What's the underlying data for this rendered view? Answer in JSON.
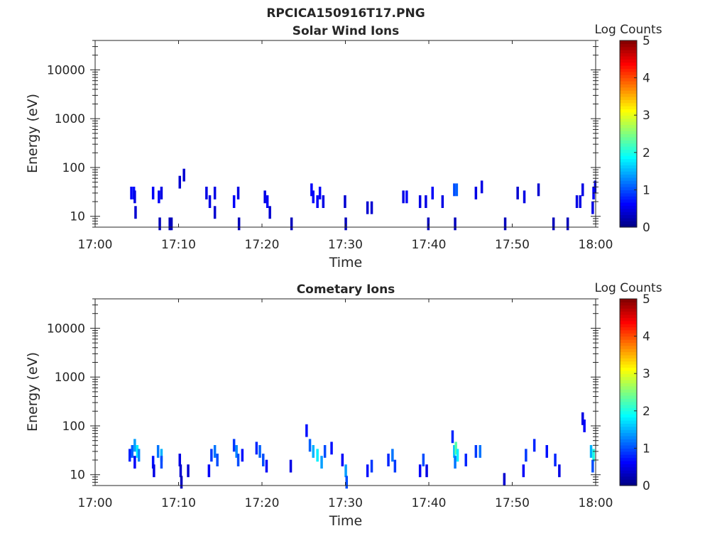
{
  "figure_title": "RPCICA150916T17.PNG",
  "colors": {
    "mark_low": "#00008f",
    "axis": "#262626",
    "colormap": [
      "#00007f",
      "#0000ff",
      "#007fff",
      "#00ffff",
      "#7fff7f",
      "#ffff00",
      "#ff7f00",
      "#ff0000",
      "#7f0000"
    ]
  },
  "chart_data": [
    {
      "type": "heatmap",
      "title": "Solar Wind Ions",
      "xlabel": "Time",
      "ylabel": "Energy (eV)",
      "xlim": [
        "17:00",
        "18:00"
      ],
      "x_ticks": [
        "17:00",
        "17:10",
        "17:20",
        "17:30",
        "17:40",
        "17:50",
        "18:00"
      ],
      "y_scale": "log",
      "ylim": [
        6,
        40000
      ],
      "y_ticks": [
        "10",
        "100",
        "1000",
        "10000"
      ],
      "colorbar": {
        "label": "Log Counts",
        "range": [
          0,
          5
        ],
        "ticks": [
          "0",
          "1",
          "2",
          "3",
          "4",
          "5"
        ]
      },
      "cells": [
        {
          "t": 4.2,
          "e": 30,
          "c": 0.6
        },
        {
          "t": 4.5,
          "e": 30,
          "c": 0.7
        },
        {
          "t": 4.6,
          "e": 25,
          "c": 0.5
        },
        {
          "t": 4.7,
          "e": 12,
          "c": 0.4
        },
        {
          "t": 6.8,
          "e": 30,
          "c": 0.6
        },
        {
          "t": 7.5,
          "e": 25,
          "c": 0.6
        },
        {
          "t": 7.8,
          "e": 30,
          "c": 0.5
        },
        {
          "t": 7.6,
          "e": 7,
          "c": 0.3
        },
        {
          "t": 8.8,
          "e": 7,
          "c": 0.3
        },
        {
          "t": 9.0,
          "e": 7,
          "c": 0.3
        },
        {
          "t": 10.0,
          "e": 50,
          "c": 0.4
        },
        {
          "t": 10.5,
          "e": 70,
          "c": 0.4
        },
        {
          "t": 13.2,
          "e": 30,
          "c": 0.5
        },
        {
          "t": 13.6,
          "e": 20,
          "c": 0.5
        },
        {
          "t": 14.2,
          "e": 30,
          "c": 0.5
        },
        {
          "t": 14.2,
          "e": 12,
          "c": 0.4
        },
        {
          "t": 16.5,
          "e": 20,
          "c": 0.6
        },
        {
          "t": 17.0,
          "e": 30,
          "c": 0.5
        },
        {
          "t": 17.1,
          "e": 7,
          "c": 0.3
        },
        {
          "t": 20.2,
          "e": 25,
          "c": 0.5
        },
        {
          "t": 20.5,
          "e": 20,
          "c": 0.6
        },
        {
          "t": 20.8,
          "e": 12,
          "c": 0.4
        },
        {
          "t": 23.4,
          "e": 7,
          "c": 0.3
        },
        {
          "t": 25.8,
          "e": 35,
          "c": 0.6
        },
        {
          "t": 26.0,
          "e": 25,
          "c": 0.6
        },
        {
          "t": 26.5,
          "e": 20,
          "c": 0.6
        },
        {
          "t": 26.8,
          "e": 30,
          "c": 0.6
        },
        {
          "t": 27.2,
          "e": 20,
          "c": 0.5
        },
        {
          "t": 29.8,
          "e": 20,
          "c": 0.4
        },
        {
          "t": 29.9,
          "e": 7,
          "c": 0.3
        },
        {
          "t": 32.5,
          "e": 15,
          "c": 0.4
        },
        {
          "t": 33.0,
          "e": 15,
          "c": 0.4
        },
        {
          "t": 36.8,
          "e": 25,
          "c": 0.5
        },
        {
          "t": 37.2,
          "e": 25,
          "c": 0.6
        },
        {
          "t": 38.8,
          "e": 20,
          "c": 0.5
        },
        {
          "t": 39.5,
          "e": 20,
          "c": 0.5
        },
        {
          "t": 39.8,
          "e": 7,
          "c": 0.3
        },
        {
          "t": 40.3,
          "e": 30,
          "c": 0.6
        },
        {
          "t": 41.5,
          "e": 20,
          "c": 0.5
        },
        {
          "t": 42.9,
          "e": 35,
          "c": 1.0
        },
        {
          "t": 43.2,
          "e": 35,
          "c": 1.1
        },
        {
          "t": 43.0,
          "e": 7,
          "c": 0.3
        },
        {
          "t": 45.5,
          "e": 30,
          "c": 0.5
        },
        {
          "t": 46.2,
          "e": 40,
          "c": 0.5
        },
        {
          "t": 49.0,
          "e": 7,
          "c": 0.3
        },
        {
          "t": 50.5,
          "e": 30,
          "c": 0.4
        },
        {
          "t": 51.3,
          "e": 25,
          "c": 0.5
        },
        {
          "t": 53.0,
          "e": 35,
          "c": 0.4
        },
        {
          "t": 54.8,
          "e": 7,
          "c": 0.3
        },
        {
          "t": 56.5,
          "e": 7,
          "c": 0.3
        },
        {
          "t": 57.6,
          "e": 20,
          "c": 0.5
        },
        {
          "t": 58.0,
          "e": 20,
          "c": 0.5
        },
        {
          "t": 58.3,
          "e": 35,
          "c": 0.5
        },
        {
          "t": 59.6,
          "e": 30,
          "c": 0.6
        },
        {
          "t": 59.8,
          "e": 40,
          "c": 0.6
        },
        {
          "t": 59.5,
          "e": 15,
          "c": 0.5
        }
      ]
    },
    {
      "type": "heatmap",
      "title": "Cometary Ions",
      "xlabel": "Time",
      "ylabel": "Energy (eV)",
      "xlim": [
        "17:00",
        "18:00"
      ],
      "x_ticks": [
        "17:00",
        "17:10",
        "17:20",
        "17:30",
        "17:40",
        "17:50",
        "18:00"
      ],
      "y_scale": "log",
      "ylim": [
        6,
        40000
      ],
      "y_ticks": [
        "10",
        "100",
        "1000",
        "10000"
      ],
      "colorbar": {
        "label": "Log Counts",
        "range": [
          0,
          5
        ],
        "ticks": [
          "0",
          "1",
          "2",
          "3",
          "4",
          "5"
        ]
      },
      "cells": [
        {
          "t": 4.0,
          "e": 25,
          "c": 0.8
        },
        {
          "t": 4.3,
          "e": 30,
          "c": 1.1
        },
        {
          "t": 4.6,
          "e": 40,
          "c": 1.4
        },
        {
          "t": 4.9,
          "e": 30,
          "c": 1.8
        },
        {
          "t": 5.1,
          "e": 25,
          "c": 1.3
        },
        {
          "t": 4.6,
          "e": 18,
          "c": 0.6
        },
        {
          "t": 6.8,
          "e": 18,
          "c": 0.7
        },
        {
          "t": 6.9,
          "e": 12,
          "c": 0.5
        },
        {
          "t": 7.4,
          "e": 30,
          "c": 1.2
        },
        {
          "t": 7.8,
          "e": 25,
          "c": 1.5
        },
        {
          "t": 7.8,
          "e": 18,
          "c": 1.0
        },
        {
          "t": 10.0,
          "e": 20,
          "c": 0.5
        },
        {
          "t": 10.1,
          "e": 12,
          "c": 0.4
        },
        {
          "t": 10.2,
          "e": 7,
          "c": 0.3
        },
        {
          "t": 11.0,
          "e": 12,
          "c": 0.4
        },
        {
          "t": 13.5,
          "e": 12,
          "c": 0.6
        },
        {
          "t": 13.8,
          "e": 25,
          "c": 0.9
        },
        {
          "t": 14.2,
          "e": 30,
          "c": 1.2
        },
        {
          "t": 14.5,
          "e": 20,
          "c": 1.0
        },
        {
          "t": 16.5,
          "e": 40,
          "c": 0.9
        },
        {
          "t": 16.8,
          "e": 30,
          "c": 1.3
        },
        {
          "t": 17.0,
          "e": 20,
          "c": 1.0
        },
        {
          "t": 17.5,
          "e": 25,
          "c": 0.7
        },
        {
          "t": 19.2,
          "e": 35,
          "c": 0.8
        },
        {
          "t": 19.6,
          "e": 30,
          "c": 1.1
        },
        {
          "t": 20.0,
          "e": 20,
          "c": 1.0
        },
        {
          "t": 20.4,
          "e": 15,
          "c": 0.6
        },
        {
          "t": 23.3,
          "e": 15,
          "c": 0.5
        },
        {
          "t": 25.2,
          "e": 80,
          "c": 0.7
        },
        {
          "t": 25.6,
          "e": 40,
          "c": 1.1
        },
        {
          "t": 26.0,
          "e": 30,
          "c": 1.5
        },
        {
          "t": 26.5,
          "e": 25,
          "c": 1.8
        },
        {
          "t": 27.0,
          "e": 18,
          "c": 1.4
        },
        {
          "t": 27.4,
          "e": 30,
          "c": 1.0
        },
        {
          "t": 28.2,
          "e": 35,
          "c": 0.7
        },
        {
          "t": 29.5,
          "e": 20,
          "c": 0.6
        },
        {
          "t": 29.9,
          "e": 12,
          "c": 1.4
        },
        {
          "t": 30.0,
          "e": 7,
          "c": 1.0
        },
        {
          "t": 32.5,
          "e": 12,
          "c": 0.7
        },
        {
          "t": 33.0,
          "e": 15,
          "c": 0.9
        },
        {
          "t": 35.0,
          "e": 20,
          "c": 0.8
        },
        {
          "t": 35.5,
          "e": 25,
          "c": 1.2
        },
        {
          "t": 35.8,
          "e": 15,
          "c": 0.9
        },
        {
          "t": 38.8,
          "e": 12,
          "c": 0.6
        },
        {
          "t": 39.2,
          "e": 20,
          "c": 1.0
        },
        {
          "t": 39.6,
          "e": 12,
          "c": 0.5
        },
        {
          "t": 42.7,
          "e": 60,
          "c": 0.8
        },
        {
          "t": 42.9,
          "e": 30,
          "c": 1.6
        },
        {
          "t": 43.1,
          "e": 35,
          "c": 2.3
        },
        {
          "t": 43.3,
          "e": 25,
          "c": 1.8
        },
        {
          "t": 43.0,
          "e": 18,
          "c": 1.2
        },
        {
          "t": 44.3,
          "e": 20,
          "c": 0.8
        },
        {
          "t": 45.5,
          "e": 30,
          "c": 0.9
        },
        {
          "t": 46.0,
          "e": 30,
          "c": 1.2
        },
        {
          "t": 48.9,
          "e": 8,
          "c": 0.4
        },
        {
          "t": 51.2,
          "e": 12,
          "c": 0.6
        },
        {
          "t": 51.5,
          "e": 25,
          "c": 0.9
        },
        {
          "t": 52.5,
          "e": 40,
          "c": 0.8
        },
        {
          "t": 54.0,
          "e": 30,
          "c": 0.7
        },
        {
          "t": 55.0,
          "e": 20,
          "c": 0.8
        },
        {
          "t": 55.5,
          "e": 12,
          "c": 0.5
        },
        {
          "t": 58.3,
          "e": 140,
          "c": 0.5
        },
        {
          "t": 58.5,
          "e": 100,
          "c": 0.6
        },
        {
          "t": 59.3,
          "e": 30,
          "c": 1.5
        },
        {
          "t": 59.6,
          "e": 25,
          "c": 2.0
        },
        {
          "t": 59.5,
          "e": 15,
          "c": 1.0
        }
      ]
    }
  ]
}
